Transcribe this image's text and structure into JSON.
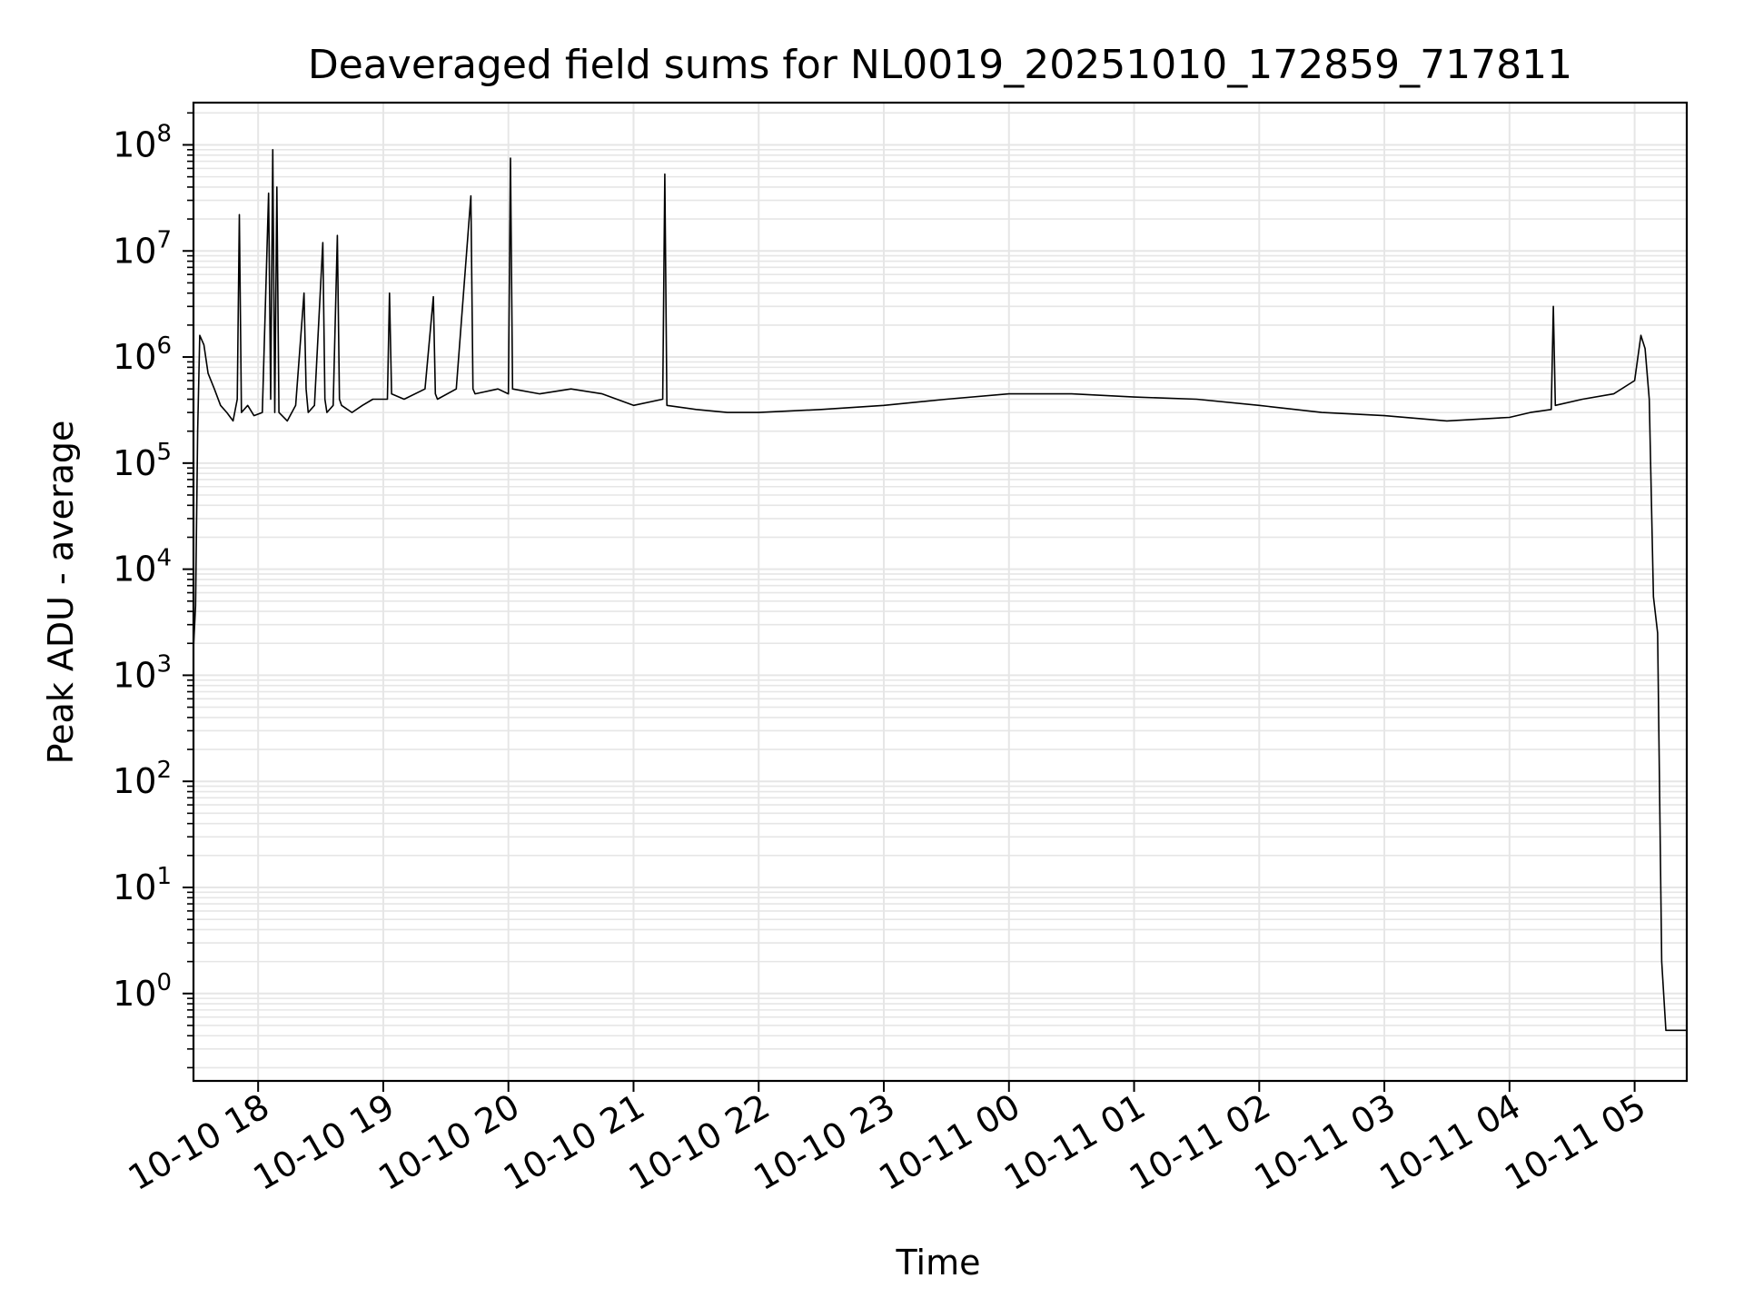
{
  "chart_data": {
    "type": "line",
    "title": "Deaveraged field sums for NL0019_20251010_172859_717811",
    "xlabel": "Time",
    "ylabel": "Peak ADU - average",
    "y_scale": "log",
    "ylim": [
      0.15,
      250000000.0
    ],
    "xlim": [
      "2025-10-10T17:29:00",
      "2025-10-11T05:25:00"
    ],
    "grid": true,
    "legend": "none",
    "line_color": "#000000",
    "grid_color": "#e6e6e6",
    "x_ticks": [
      {
        "value": "2025-10-10T18:00:00",
        "label": "10-10 18"
      },
      {
        "value": "2025-10-10T19:00:00",
        "label": "10-10 19"
      },
      {
        "value": "2025-10-10T20:00:00",
        "label": "10-10 20"
      },
      {
        "value": "2025-10-10T21:00:00",
        "label": "10-10 21"
      },
      {
        "value": "2025-10-10T22:00:00",
        "label": "10-10 22"
      },
      {
        "value": "2025-10-10T23:00:00",
        "label": "10-10 23"
      },
      {
        "value": "2025-10-11T00:00:00",
        "label": "10-11 00"
      },
      {
        "value": "2025-10-11T01:00:00",
        "label": "10-11 01"
      },
      {
        "value": "2025-10-11T02:00:00",
        "label": "10-11 02"
      },
      {
        "value": "2025-10-11T03:00:00",
        "label": "10-11 03"
      },
      {
        "value": "2025-10-11T04:00:00",
        "label": "10-11 04"
      },
      {
        "value": "2025-10-11T05:00:00",
        "label": "10-11 05"
      }
    ],
    "y_ticks": [
      {
        "exponent": 0,
        "label_base": "10",
        "label_exp": "0"
      },
      {
        "exponent": 1,
        "label_base": "10",
        "label_exp": "1"
      },
      {
        "exponent": 2,
        "label_base": "10",
        "label_exp": "2"
      },
      {
        "exponent": 3,
        "label_base": "10",
        "label_exp": "3"
      },
      {
        "exponent": 4,
        "label_base": "10",
        "label_exp": "4"
      },
      {
        "exponent": 5,
        "label_base": "10",
        "label_exp": "5"
      },
      {
        "exponent": 6,
        "label_base": "10",
        "label_exp": "6"
      },
      {
        "exponent": 7,
        "label_base": "10",
        "label_exp": "7"
      },
      {
        "exponent": 8,
        "label_base": "10",
        "label_exp": "8"
      }
    ],
    "series": [
      {
        "x": [
          "2025-10-10T17:29:00",
          "2025-10-10T17:30:00",
          "2025-10-10T17:31:00",
          "2025-10-10T17:32:00",
          "2025-10-10T17:34:00",
          "2025-10-10T17:36:00",
          "2025-10-10T17:39:00",
          "2025-10-10T17:42:00",
          "2025-10-10T17:45:00",
          "2025-10-10T17:48:00",
          "2025-10-10T17:50:00",
          "2025-10-10T17:51:00",
          "2025-10-10T17:52:00",
          "2025-10-10T17:55:00",
          "2025-10-10T17:58:00",
          "2025-10-10T18:02:00",
          "2025-10-10T18:05:00",
          "2025-10-10T18:06:00",
          "2025-10-10T18:07:00",
          "2025-10-10T18:08:00",
          "2025-10-10T18:09:00",
          "2025-10-10T18:10:00",
          "2025-10-10T18:14:00",
          "2025-10-10T18:18:00",
          "2025-10-10T18:22:00",
          "2025-10-10T18:23:00",
          "2025-10-10T18:24:00",
          "2025-10-10T18:27:00",
          "2025-10-10T18:31:00",
          "2025-10-10T18:32:00",
          "2025-10-10T18:33:00",
          "2025-10-10T18:36:00",
          "2025-10-10T18:38:00",
          "2025-10-10T18:39:00",
          "2025-10-10T18:40:00",
          "2025-10-10T18:45:00",
          "2025-10-10T18:50:00",
          "2025-10-10T18:55:00",
          "2025-10-10T19:02:00",
          "2025-10-10T19:03:00",
          "2025-10-10T19:04:00",
          "2025-10-10T19:10:00",
          "2025-10-10T19:20:00",
          "2025-10-10T19:24:00",
          "2025-10-10T19:25:00",
          "2025-10-10T19:26:00",
          "2025-10-10T19:35:00",
          "2025-10-10T19:42:00",
          "2025-10-10T19:43:00",
          "2025-10-10T19:44:00",
          "2025-10-10T19:55:00",
          "2025-10-10T20:00:00",
          "2025-10-10T20:01:00",
          "2025-10-10T20:02:00",
          "2025-10-10T20:15:00",
          "2025-10-10T20:30:00",
          "2025-10-10T20:45:00",
          "2025-10-10T21:00:00",
          "2025-10-10T21:14:00",
          "2025-10-10T21:15:00",
          "2025-10-10T21:16:00",
          "2025-10-10T21:30:00",
          "2025-10-10T21:45:00",
          "2025-10-10T22:00:00",
          "2025-10-10T22:30:00",
          "2025-10-10T23:00:00",
          "2025-10-10T23:30:00",
          "2025-10-11T00:00:00",
          "2025-10-11T00:30:00",
          "2025-10-11T01:00:00",
          "2025-10-11T01:30:00",
          "2025-10-11T02:00:00",
          "2025-10-11T02:30:00",
          "2025-10-11T03:00:00",
          "2025-10-11T03:30:00",
          "2025-10-11T04:00:00",
          "2025-10-11T04:10:00",
          "2025-10-11T04:20:00",
          "2025-10-11T04:21:00",
          "2025-10-11T04:22:00",
          "2025-10-11T04:35:00",
          "2025-10-11T04:50:00",
          "2025-10-11T05:00:00",
          "2025-10-11T05:03:00",
          "2025-10-11T05:05:00",
          "2025-10-11T05:07:00",
          "2025-10-11T05:09:00",
          "2025-10-11T05:11:00",
          "2025-10-11T05:13:00",
          "2025-10-11T05:15:00",
          "2025-10-11T05:20:00",
          "2025-10-11T05:25:00"
        ],
        "y": [
          1800,
          4500,
          200000,
          1600000,
          1300000,
          700000,
          500000,
          350000,
          300000,
          250000,
          400000,
          22000000,
          300000,
          350000,
          280000,
          300000,
          35000000,
          400000,
          90000000,
          300000,
          40000000,
          300000,
          250000,
          350000,
          4000000,
          500000,
          300000,
          350000,
          12000000,
          400000,
          300000,
          350000,
          14000000,
          400000,
          350000,
          300000,
          350000,
          400000,
          400000,
          4000000,
          450000,
          400000,
          500000,
          3700000,
          450000,
          400000,
          500000,
          33000000,
          500000,
          450000,
          500000,
          450000,
          75000000,
          500000,
          450000,
          500000,
          450000,
          350000,
          400000,
          53000000,
          350000,
          320000,
          300000,
          300000,
          320000,
          350000,
          400000,
          450000,
          450000,
          420000,
          400000,
          350000,
          300000,
          280000,
          250000,
          270000,
          300000,
          320000,
          3000000,
          350000,
          400000,
          450000,
          600000,
          1600000,
          1200000,
          400000,
          5500,
          2500,
          2,
          0.45,
          0.45,
          0.45
        ]
      }
    ]
  }
}
